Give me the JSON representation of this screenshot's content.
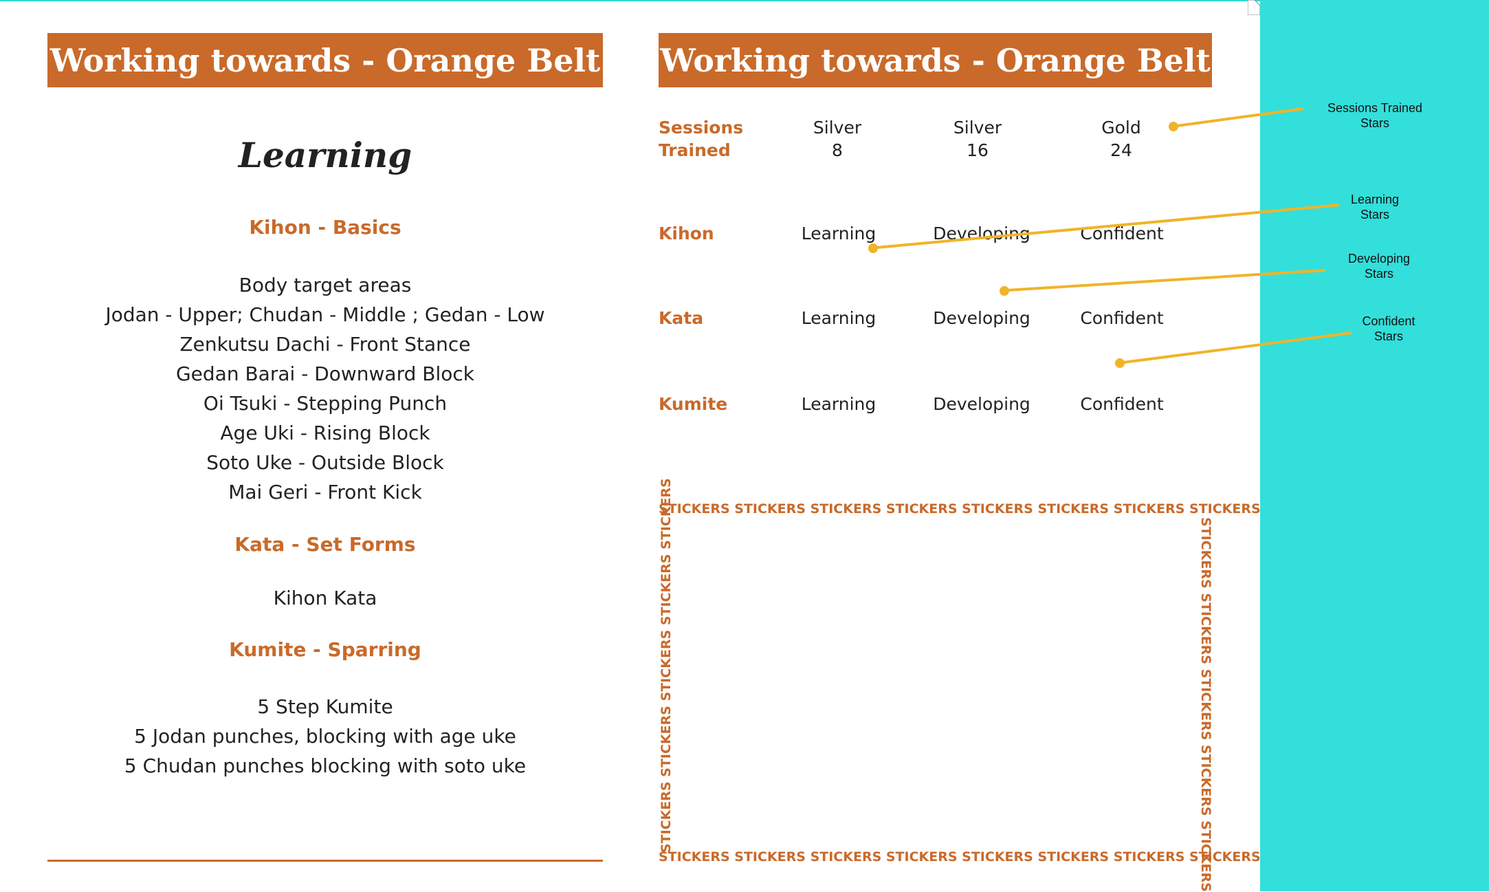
{
  "page_title": "Working towards - Orange Belt",
  "left": {
    "heading": "Learning",
    "kihon": {
      "title": "Kihon - Basics",
      "lines": [
        "Body target areas",
        "Jodan - Upper; Chudan - Middle ; Gedan - Low",
        "Zenkutsu Dachi - Front Stance",
        "Gedan Barai - Downward Block",
        "Oi Tsuki - Stepping Punch",
        "Age Uki - Rising Block",
        "Soto Uke - Outside Block",
        "Mai Geri - Front Kick"
      ]
    },
    "kata": {
      "title": "Kata - Set Forms",
      "lines": [
        "Kihon Kata"
      ]
    },
    "kumite": {
      "title": "Kumite - Sparring",
      "lines": [
        "5 Step Kumite",
        "5 Jodan punches, blocking  with age uke",
        "5 Chudan punches blocking with soto uke"
      ]
    }
  },
  "right": {
    "sessions": {
      "label_1": "Sessions",
      "label_2": "Trained",
      "cols": [
        {
          "level": "Silver",
          "count": "8"
        },
        {
          "level": "Silver",
          "count": "16"
        },
        {
          "level": "Gold",
          "count": "24"
        }
      ]
    },
    "rows": [
      {
        "label": "Kihon",
        "c1": "Learning",
        "c2": "Developing",
        "c3": "Confident"
      },
      {
        "label": "Kata",
        "c1": "Learning",
        "c2": "Developing",
        "c3": "Confident"
      },
      {
        "label": "Kumite",
        "c1": "Learning",
        "c2": "Developing",
        "c3": "Confident"
      }
    ],
    "stickers_word": "STICKERS"
  },
  "annotations": {
    "sessions_1": "Sessions Trained",
    "sessions_2": "Stars",
    "learning_1": "Learning",
    "learning_2": "Stars",
    "developing_1": "Developing",
    "developing_2": "Stars",
    "confident_1": "Confident",
    "confident_2": "Stars"
  },
  "colors": {
    "accent": "#c96a2a",
    "panel": "#33dfdb",
    "arrow": "#f0b429"
  }
}
